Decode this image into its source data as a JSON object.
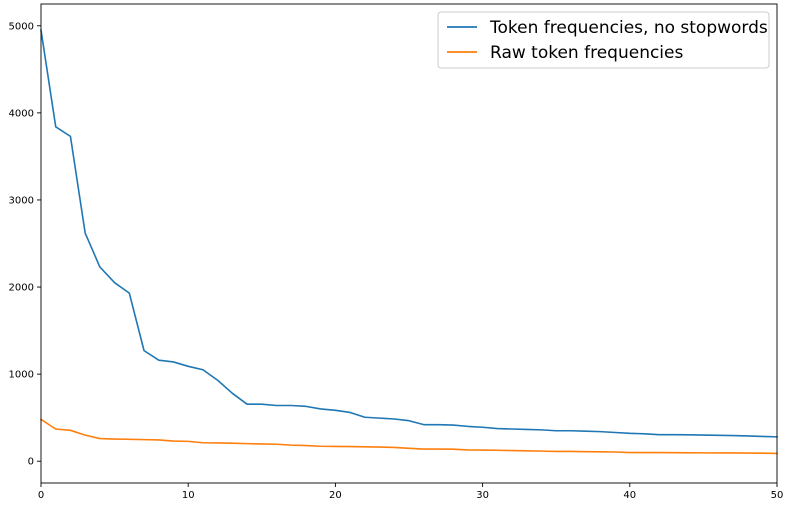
{
  "chart_data": {
    "type": "line",
    "title": "",
    "xlabel": "",
    "ylabel": "",
    "xlim": [
      0,
      50
    ],
    "ylim": [
      -250,
      5250
    ],
    "grid": false,
    "legend_position": "top-right",
    "xticks": [
      0,
      10,
      20,
      30,
      40,
      50
    ],
    "yticks": [
      0,
      1000,
      2000,
      3000,
      4000,
      5000
    ],
    "series": [
      {
        "name": "Token frequencies, no stopwords",
        "color": "#1f77b4",
        "x": [
          0,
          1,
          2,
          3,
          4,
          5,
          6,
          7,
          8,
          9,
          10,
          11,
          12,
          13,
          14,
          15,
          16,
          17,
          18,
          19,
          20,
          21,
          22,
          23,
          24,
          25,
          26,
          27,
          28,
          29,
          30,
          31,
          32,
          33,
          34,
          35,
          36,
          37,
          38,
          39,
          40,
          41,
          42,
          43,
          44,
          45,
          46,
          47,
          48,
          49,
          50
        ],
        "values": [
          4950,
          3840,
          3730,
          2620,
          2230,
          2050,
          1930,
          1270,
          1160,
          1140,
          1090,
          1050,
          930,
          780,
          655,
          655,
          640,
          640,
          630,
          600,
          585,
          560,
          505,
          495,
          485,
          465,
          420,
          420,
          415,
          400,
          390,
          375,
          370,
          365,
          360,
          350,
          350,
          345,
          340,
          330,
          320,
          315,
          305,
          305,
          303,
          300,
          298,
          295,
          290,
          285,
          280
        ]
      },
      {
        "name": "Raw token frequencies",
        "color": "#ff7f0e",
        "x": [
          0,
          1,
          2,
          3,
          4,
          5,
          6,
          7,
          8,
          9,
          10,
          11,
          12,
          13,
          14,
          15,
          16,
          17,
          18,
          19,
          20,
          21,
          22,
          23,
          24,
          25,
          26,
          27,
          28,
          29,
          30,
          31,
          32,
          33,
          34,
          35,
          36,
          37,
          38,
          39,
          40,
          41,
          42,
          43,
          44,
          45,
          46,
          47,
          48,
          49,
          50
        ],
        "values": [
          480,
          370,
          355,
          300,
          260,
          255,
          252,
          248,
          245,
          232,
          228,
          212,
          210,
          207,
          202,
          198,
          195,
          185,
          180,
          172,
          170,
          168,
          165,
          163,
          158,
          148,
          140,
          140,
          138,
          130,
          128,
          126,
          122,
          120,
          116,
          113,
          112,
          110,
          108,
          106,
          100,
          100,
          99,
          98,
          97,
          96,
          95,
          95,
          94,
          92,
          90
        ]
      }
    ]
  }
}
